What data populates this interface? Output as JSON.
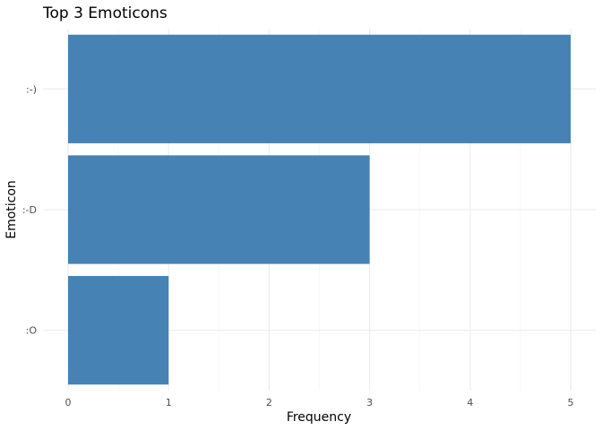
{
  "chart_data": {
    "type": "bar",
    "orientation": "horizontal",
    "title": "Top 3 Emoticons",
    "xlabel": "Frequency",
    "ylabel": "Emoticon",
    "categories": [
      ":-)",
      ":-D",
      ":O"
    ],
    "values": [
      5,
      3,
      1
    ],
    "xlim": [
      0,
      5.2
    ],
    "xticks": [
      "0",
      "1",
      "2",
      "3",
      "4",
      "5"
    ],
    "bar_color": "#4682B4",
    "grid": true,
    "legend": "none"
  }
}
